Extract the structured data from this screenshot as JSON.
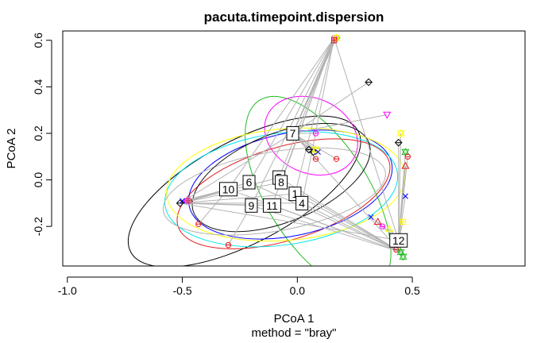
{
  "chart_data": {
    "type": "scatter",
    "title": "pacuta.timepoint.dispersion",
    "xlabel": "PCoA 1",
    "subxlabel": "method = \"bray\"",
    "ylabel": "PCoA 2",
    "xlim": [
      -1.02,
      0.99
    ],
    "ylim": [
      -0.37,
      0.64
    ],
    "xticks": [
      -1.0,
      -0.5,
      0.0,
      0.5
    ],
    "xtick_labels": [
      "-1.0",
      "-0.5",
      "0.0",
      "0.5"
    ],
    "yticks": [
      -0.2,
      0.0,
      0.2,
      0.4,
      0.6
    ],
    "ytick_labels": [
      "-0.2",
      "0.0",
      "0.2",
      "0.4",
      "0.6"
    ],
    "legend": "none",
    "centroids": [
      {
        "label": "1",
        "x": -0.01,
        "y": -0.06
      },
      {
        "label": "4",
        "x": 0.02,
        "y": -0.1
      },
      {
        "label": "5",
        "x": -0.08,
        "y": 0.01
      },
      {
        "label": "6",
        "x": -0.21,
        "y": -0.01
      },
      {
        "label": "7",
        "x": -0.02,
        "y": 0.2
      },
      {
        "label": "8",
        "x": -0.07,
        "y": -0.01
      },
      {
        "label": "9",
        "x": -0.2,
        "y": -0.11
      },
      {
        "label": "10",
        "x": -0.3,
        "y": -0.04
      },
      {
        "label": "11",
        "x": -0.11,
        "y": -0.11
      },
      {
        "label": "12",
        "x": 0.44,
        "y": -0.26
      }
    ],
    "ellipses": [
      {
        "color": "#000000",
        "cx": -0.23,
        "cy": -0.05,
        "rx": 0.56,
        "ry": 0.22,
        "angle": 28
      },
      {
        "color": "#e41a1c",
        "cx": -0.06,
        "cy": -0.06,
        "rx": 0.48,
        "ry": 0.2,
        "angle": 17
      },
      {
        "color": "#22bb22",
        "cx": 0.09,
        "cy": -0.06,
        "rx": 0.48,
        "ry": 0.22,
        "angle": -58
      },
      {
        "color": "#0000ff",
        "cx": -0.03,
        "cy": -0.02,
        "rx": 0.45,
        "ry": 0.22,
        "angle": 12
      },
      {
        "color": "#00e5ee",
        "cx": -0.07,
        "cy": -0.04,
        "rx": 0.51,
        "ry": 0.24,
        "angle": 8
      },
      {
        "color": "#ff00ff",
        "cx": 0.06,
        "cy": 0.19,
        "rx": 0.21,
        "ry": 0.16,
        "angle": -25
      },
      {
        "color": "#ffff00",
        "cx": -0.05,
        "cy": -0.02,
        "rx": 0.52,
        "ry": 0.24,
        "angle": 5
      },
      {
        "color": "#b3b3b3",
        "cx": -0.1,
        "cy": -0.05,
        "rx": 0.49,
        "ry": 0.17,
        "angle": 10
      },
      {
        "color": "#111111",
        "cx": -0.07,
        "cy": 0.01,
        "rx": 0.41,
        "ry": 0.19,
        "angle": 22
      }
    ],
    "points": [
      {
        "x": 0.16,
        "y": 0.61,
        "color": "#ff00ff",
        "shape": "circle"
      },
      {
        "x": 0.17,
        "y": 0.61,
        "color": "#22bb22",
        "shape": "diamond"
      },
      {
        "x": 0.17,
        "y": 0.61,
        "color": "#ffff00",
        "shape": "star"
      },
      {
        "x": 0.16,
        "y": 0.6,
        "color": "#e41a1c",
        "shape": "plus"
      },
      {
        "x": 0.31,
        "y": 0.42,
        "color": "#000000",
        "shape": "diamond"
      },
      {
        "x": 0.39,
        "y": 0.28,
        "color": "#ff00ff",
        "shape": "triangle-down"
      },
      {
        "x": 0.45,
        "y": 0.2,
        "color": "#ffff00",
        "shape": "star"
      },
      {
        "x": 0.44,
        "y": 0.16,
        "color": "#000000",
        "shape": "diamond"
      },
      {
        "x": 0.47,
        "y": 0.12,
        "color": "#22bb22",
        "shape": "star"
      },
      {
        "x": 0.48,
        "y": 0.1,
        "color": "#e41a1c",
        "shape": "circle"
      },
      {
        "x": 0.47,
        "y": 0.06,
        "color": "#e41a1c",
        "shape": "triangle"
      },
      {
        "x": 0.47,
        "y": -0.07,
        "color": "#0000ff",
        "shape": "x"
      },
      {
        "x": 0.46,
        "y": -0.18,
        "color": "#ffff00",
        "shape": "plus"
      },
      {
        "x": 0.32,
        "y": -0.16,
        "color": "#0000ff",
        "shape": "x"
      },
      {
        "x": 0.35,
        "y": -0.18,
        "color": "#e41a1c",
        "shape": "triangle"
      },
      {
        "x": 0.37,
        "y": -0.2,
        "color": "#ff00ff",
        "shape": "circle"
      },
      {
        "x": 0.4,
        "y": -0.21,
        "color": "#ffff00",
        "shape": "triangle"
      },
      {
        "x": 0.43,
        "y": -0.3,
        "color": "#e41a1c",
        "shape": "circle"
      },
      {
        "x": 0.45,
        "y": -0.31,
        "color": "#22bb22",
        "shape": "star"
      },
      {
        "x": 0.46,
        "y": -0.33,
        "color": "#22bb22",
        "shape": "star"
      },
      {
        "x": 0.08,
        "y": 0.2,
        "color": "#ff00ff",
        "shape": "circle"
      },
      {
        "x": 0.05,
        "y": 0.13,
        "color": "#000000",
        "shape": "diamond"
      },
      {
        "x": 0.07,
        "y": 0.12,
        "color": "#000000",
        "shape": "diamond"
      },
      {
        "x": 0.08,
        "y": 0.13,
        "color": "#ffff00",
        "shape": "star"
      },
      {
        "x": 0.09,
        "y": 0.12,
        "color": "#0000ff",
        "shape": "x"
      },
      {
        "x": 0.08,
        "y": 0.09,
        "color": "#e41a1c",
        "shape": "circle"
      },
      {
        "x": 0.17,
        "y": 0.09,
        "color": "#e41a1c",
        "shape": "circle"
      },
      {
        "x": -0.51,
        "y": -0.1,
        "color": "#000000",
        "shape": "diamond"
      },
      {
        "x": -0.5,
        "y": -0.09,
        "color": "#0000ff",
        "shape": "x"
      },
      {
        "x": -0.48,
        "y": -0.09,
        "color": "#ff00ff",
        "shape": "circle"
      },
      {
        "x": -0.47,
        "y": -0.09,
        "color": "#e41a1c",
        "shape": "circle"
      },
      {
        "x": -0.43,
        "y": -0.19,
        "color": "#e41a1c",
        "shape": "circle"
      },
      {
        "x": -0.3,
        "y": -0.28,
        "color": "#e41a1c",
        "shape": "circle"
      }
    ]
  }
}
